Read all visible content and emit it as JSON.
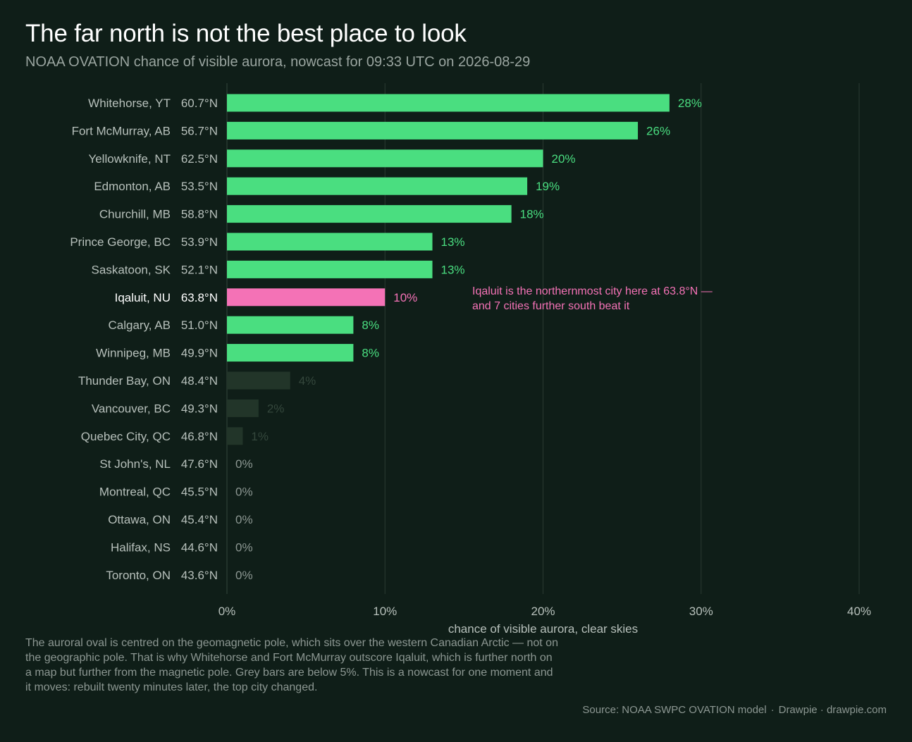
{
  "title": "The far north is not the best place to look",
  "subtitle": "NOAA OVATION chance of visible aurora, nowcast for 09:33 UTC on 2026-08-29",
  "colors": {
    "background": "#0f1e18",
    "bar_main": "#4ade80",
    "bar_highlight": "#f472b6",
    "bar_low": "#223529",
    "label_low": "#34473c",
    "label_zero": "#8c9792",
    "city_label": "#b7c0bb",
    "city_highlight": "#ffffff",
    "grid": "#2a3a32",
    "axis_text": "#b7c0bb"
  },
  "chart_data": {
    "type": "bar",
    "orientation": "horizontal",
    "xlabel": "chance of visible aurora, clear skies",
    "xlim": [
      0,
      40
    ],
    "xticks": [
      {
        "value": 0,
        "label": "0%"
      },
      {
        "value": 10,
        "label": "10%"
      },
      {
        "value": 20,
        "label": "20%"
      },
      {
        "value": 30,
        "label": "30%"
      },
      {
        "value": 40,
        "label": "40%"
      }
    ],
    "grid": "vertical",
    "low_threshold": 5,
    "highlight": "Iqaluit, NU",
    "rows": [
      {
        "city": "Whitehorse, YT",
        "lat": "60.7°N",
        "value": 28,
        "label": "28%"
      },
      {
        "city": "Fort McMurray, AB",
        "lat": "56.7°N",
        "value": 26,
        "label": "26%"
      },
      {
        "city": "Yellowknife, NT",
        "lat": "62.5°N",
        "value": 20,
        "label": "20%"
      },
      {
        "city": "Edmonton, AB",
        "lat": "53.5°N",
        "value": 19,
        "label": "19%"
      },
      {
        "city": "Churchill, MB",
        "lat": "58.8°N",
        "value": 18,
        "label": "18%"
      },
      {
        "city": "Prince George, BC",
        "lat": "53.9°N",
        "value": 13,
        "label": "13%"
      },
      {
        "city": "Saskatoon, SK",
        "lat": "52.1°N",
        "value": 13,
        "label": "13%"
      },
      {
        "city": "Iqaluit, NU",
        "lat": "63.8°N",
        "value": 10,
        "label": "10%"
      },
      {
        "city": "Calgary, AB",
        "lat": "51.0°N",
        "value": 8,
        "label": "8%"
      },
      {
        "city": "Winnipeg, MB",
        "lat": "49.9°N",
        "value": 8,
        "label": "8%"
      },
      {
        "city": "Thunder Bay, ON",
        "lat": "48.4°N",
        "value": 4,
        "label": "4%"
      },
      {
        "city": "Vancouver, BC",
        "lat": "49.3°N",
        "value": 2,
        "label": "2%"
      },
      {
        "city": "Quebec City, QC",
        "lat": "46.8°N",
        "value": 1,
        "label": "1%"
      },
      {
        "city": "St John's, NL",
        "lat": "47.6°N",
        "value": 0,
        "label": "0%"
      },
      {
        "city": "Montreal, QC",
        "lat": "45.5°N",
        "value": 0,
        "label": "0%"
      },
      {
        "city": "Ottawa, ON",
        "lat": "45.4°N",
        "value": 0,
        "label": "0%"
      },
      {
        "city": "Halifax, NS",
        "lat": "44.6°N",
        "value": 0,
        "label": "0%"
      },
      {
        "city": "Toronto, ON",
        "lat": "43.6°N",
        "value": 0,
        "label": "0%"
      }
    ],
    "annotation": {
      "lines": [
        "Iqaluit is the northernmost city here at 63.8°N —",
        "and 7 cities further south beat it"
      ]
    }
  },
  "note": "The auroral oval is centred on the geomagnetic pole, which sits over the western Canadian Arctic — not on the geographic pole. That is why Whitehorse and Fort McMurray outscore Iqaluit, which is further north on a map but further from the magnetic pole. Grey bars are below 5%. This is a nowcast for one moment and it moves: rebuilt twenty minutes later, the top city changed.",
  "source": {
    "text": "Source: NOAA SWPC OVATION model",
    "separator": "·",
    "credit": "Drawpie · drawpie.com"
  }
}
